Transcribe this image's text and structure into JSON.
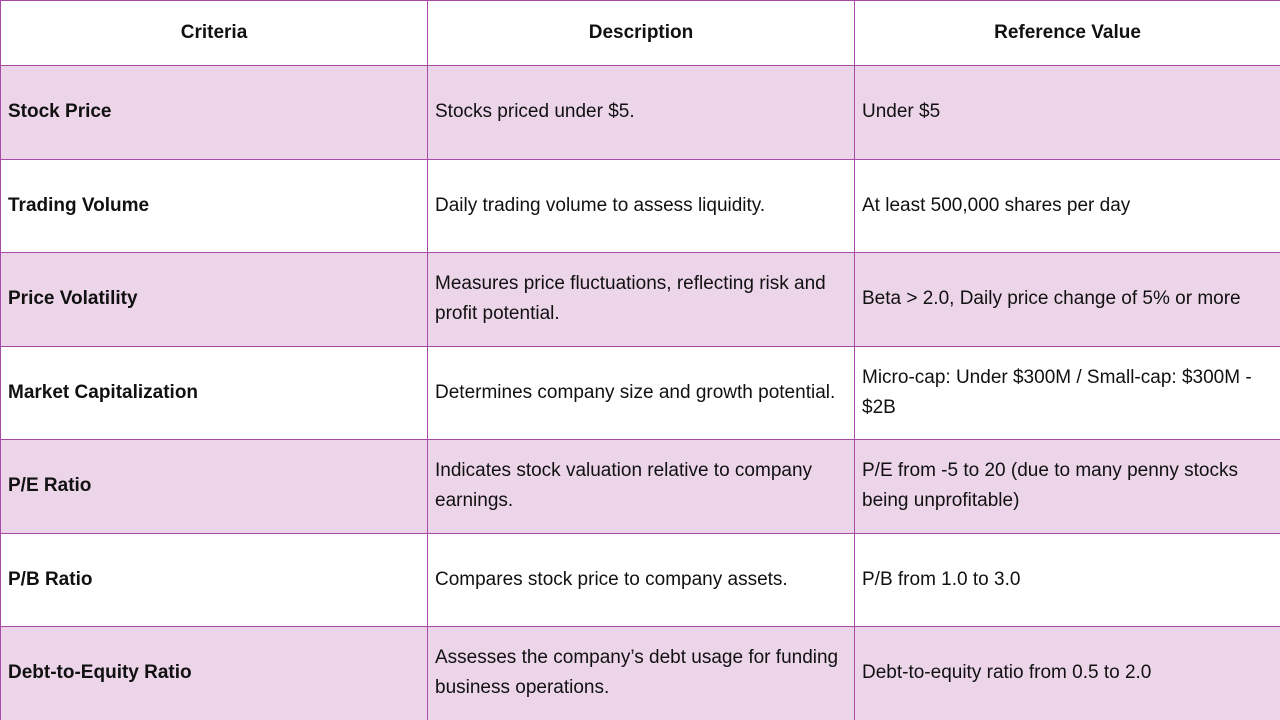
{
  "table": {
    "headers": [
      "Criteria",
      "Description",
      "Reference Value"
    ],
    "rows": [
      {
        "criteria": "Stock Price",
        "description": "Stocks priced under $5.",
        "reference": "Under $5"
      },
      {
        "criteria": "Trading Volume",
        "description": "Daily trading volume to assess liquidity.",
        "reference": "At least 500,000 shares per day"
      },
      {
        "criteria": "Price Volatility",
        "description": "Measures price fluctuations, reflecting risk and profit potential.",
        "reference": "Beta > 2.0, Daily price change of 5% or more"
      },
      {
        "criteria": "Market Capitalization",
        "description": "Determines company size and growth potential.",
        "reference": "Micro-cap: Under $300M / Small-cap: $300M - $2B"
      },
      {
        "criteria": "P/E Ratio",
        "description": "Indicates stock valuation relative to company earnings.",
        "reference": "P/E from -5 to 20 (due to many penny stocks being unprofitable)"
      },
      {
        "criteria": "P/B Ratio",
        "description": "Compares stock price to company assets.",
        "reference": "P/B from 1.0 to 3.0"
      },
      {
        "criteria": "Debt-to-Equity Ratio",
        "description": "Assesses the company’s debt usage for funding business operations.",
        "reference": "Debt-to-equity ratio from 0.5 to 2.0"
      }
    ]
  },
  "colors": {
    "border": "#a64ca6",
    "shaded_row": "#ecd5e9",
    "plain_row": "#ffffff",
    "text": "#111111"
  }
}
